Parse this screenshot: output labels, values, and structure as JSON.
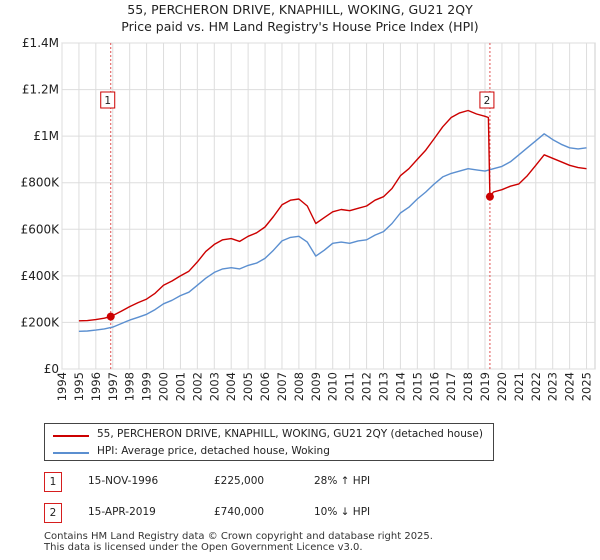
{
  "header": {
    "title": "55, PERCHERON DRIVE, KNAPHILL, WOKING, GU21 2QY",
    "subtitle": "Price paid vs. HM Land Registry's House Price Index (HPI)"
  },
  "chart_data": {
    "type": "line",
    "title": "55, PERCHERON DRIVE, KNAPHILL, WOKING, GU21 2QY",
    "subtitle": "Price paid vs. HM Land Registry's House Price Index (HPI)",
    "xlabel": "",
    "ylabel": "",
    "xlim": [
      1994,
      2025.5
    ],
    "ylim": [
      0,
      1400000
    ],
    "grid": true,
    "yticks": [
      0,
      200000,
      400000,
      600000,
      800000,
      1000000,
      1200000,
      1400000
    ],
    "ytick_labels": [
      "£0",
      "£200K",
      "£400K",
      "£600K",
      "£800K",
      "£1M",
      "£1.2M",
      "£1.4M"
    ],
    "xticks": [
      "1994",
      "1995",
      "1996",
      "1997",
      "1998",
      "1999",
      "2000",
      "2001",
      "2002",
      "2003",
      "2004",
      "2005",
      "2006",
      "2007",
      "2008",
      "2009",
      "2010",
      "2011",
      "2012",
      "2013",
      "2014",
      "2015",
      "2016",
      "2017",
      "2018",
      "2019",
      "2020",
      "2021",
      "2022",
      "2023",
      "2024",
      "2025"
    ],
    "series": [
      {
        "name": "55, PERCHERON DRIVE, KNAPHILL, WOKING, GU21 2QY (detached house)",
        "color": "#cc0000",
        "x": [
          1995.0,
          1995.5,
          1996.0,
          1996.5,
          1996.88,
          1997.5,
          1998.0,
          1998.5,
          1999.0,
          1999.5,
          2000.0,
          2000.5,
          2001.0,
          2001.5,
          2002.0,
          2002.5,
          2003.0,
          2003.5,
          2004.0,
          2004.5,
          2005.0,
          2005.5,
          2006.0,
          2006.5,
          2007.0,
          2007.5,
          2008.0,
          2008.5,
          2009.0,
          2009.5,
          2010.0,
          2010.5,
          2011.0,
          2011.5,
          2012.0,
          2012.5,
          2013.0,
          2013.5,
          2014.0,
          2014.5,
          2015.0,
          2015.5,
          2016.0,
          2016.5,
          2017.0,
          2017.5,
          2018.0,
          2018.5,
          2019.0,
          2019.2,
          2019.29,
          2019.5,
          2020.0,
          2020.5,
          2021.0,
          2021.5,
          2022.0,
          2022.5,
          2023.0,
          2023.5,
          2024.0,
          2024.5,
          2025.0
        ],
        "y": [
          207000,
          208000,
          212000,
          218000,
          225000,
          248000,
          268000,
          285000,
          300000,
          325000,
          360000,
          378000,
          400000,
          420000,
          460000,
          505000,
          535000,
          555000,
          560000,
          548000,
          570000,
          585000,
          610000,
          655000,
          705000,
          725000,
          730000,
          700000,
          625000,
          650000,
          675000,
          685000,
          680000,
          690000,
          700000,
          725000,
          740000,
          775000,
          830000,
          860000,
          900000,
          940000,
          990000,
          1040000,
          1080000,
          1100000,
          1110000,
          1095000,
          1085000,
          1080000,
          740000,
          760000,
          770000,
          785000,
          795000,
          830000,
          875000,
          920000,
          905000,
          890000,
          875000,
          865000,
          860000
        ]
      },
      {
        "name": "HPI: Average price, detached house, Woking",
        "color": "#5b8fd0",
        "x": [
          1995.0,
          1995.5,
          1996.0,
          1996.5,
          1997.0,
          1997.5,
          1998.0,
          1998.5,
          1999.0,
          1999.5,
          2000.0,
          2000.5,
          2001.0,
          2001.5,
          2002.0,
          2002.5,
          2003.0,
          2003.5,
          2004.0,
          2004.5,
          2005.0,
          2005.5,
          2006.0,
          2006.5,
          2007.0,
          2007.5,
          2008.0,
          2008.5,
          2009.0,
          2009.5,
          2010.0,
          2010.5,
          2011.0,
          2011.5,
          2012.0,
          2012.5,
          2013.0,
          2013.5,
          2014.0,
          2014.5,
          2015.0,
          2015.5,
          2016.0,
          2016.5,
          2017.0,
          2017.5,
          2018.0,
          2018.5,
          2019.0,
          2019.5,
          2020.0,
          2020.5,
          2021.0,
          2021.5,
          2022.0,
          2022.5,
          2023.0,
          2023.5,
          2024.0,
          2024.5,
          2025.0
        ],
        "y": [
          162000,
          163000,
          167000,
          172000,
          180000,
          195000,
          210000,
          222000,
          235000,
          255000,
          280000,
          295000,
          315000,
          330000,
          360000,
          390000,
          415000,
          430000,
          435000,
          430000,
          445000,
          455000,
          475000,
          510000,
          550000,
          565000,
          570000,
          545000,
          485000,
          510000,
          540000,
          545000,
          540000,
          550000,
          555000,
          575000,
          590000,
          625000,
          670000,
          695000,
          730000,
          760000,
          795000,
          825000,
          840000,
          850000,
          860000,
          855000,
          850000,
          860000,
          870000,
          890000,
          920000,
          950000,
          980000,
          1010000,
          985000,
          965000,
          950000,
          945000,
          950000
        ]
      }
    ],
    "annotations": [
      {
        "label": "1",
        "x": 1996.88,
        "value": 225000
      },
      {
        "label": "2",
        "x": 2019.29,
        "value": 740000
      }
    ]
  },
  "legend": {
    "items": [
      {
        "label": "55, PERCHERON DRIVE, KNAPHILL, WOKING, GU21 2QY (detached house)",
        "color": "#cc0000"
      },
      {
        "label": "HPI: Average price, detached house, Woking",
        "color": "#5b8fd0"
      }
    ]
  },
  "sales": [
    {
      "num": "1",
      "date": "15-NOV-1996",
      "price": "£225,000",
      "hpi": "28% ↑ HPI"
    },
    {
      "num": "2",
      "date": "15-APR-2019",
      "price": "£740,000",
      "hpi": "10% ↓ HPI"
    }
  ],
  "footer": {
    "line1": "Contains HM Land Registry data © Crown copyright and database right 2025.",
    "line2": "This data is licensed under the Open Government Licence v3.0."
  }
}
